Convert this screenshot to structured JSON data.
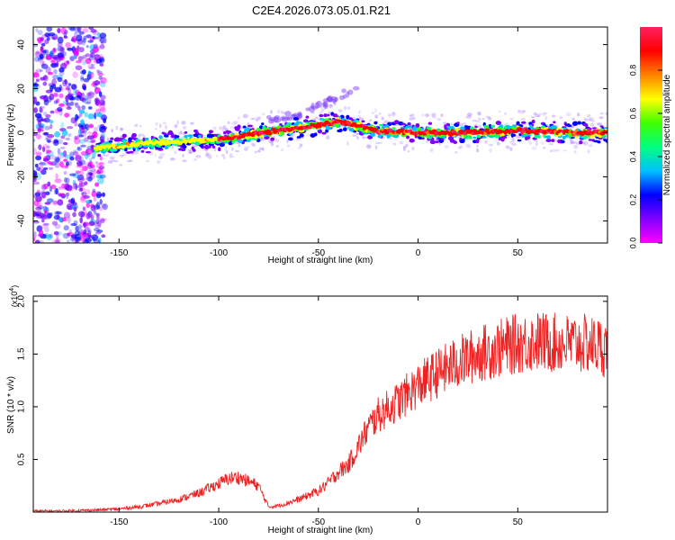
{
  "figure": {
    "title": "C2E4.2026.073.05.01.R21"
  },
  "chart_data": [
    {
      "type": "heatmap",
      "title": "C2E4.2026.073.05.01.R21",
      "xlabel": "Height of straight line (km)",
      "ylabel": "Frequency (Hz)",
      "xlim": [
        -193,
        95
      ],
      "ylim": [
        -50,
        48
      ],
      "xticks": [
        -150,
        -100,
        -50,
        0,
        50
      ],
      "yticks": [
        -40,
        -20,
        0,
        20,
        40
      ],
      "colorbar": {
        "label": "Normalized spectral amplitude",
        "range": [
          0.0,
          1.0
        ],
        "ticks": [
          "0.0",
          "0.2",
          "0.4",
          "0.6",
          "0.8"
        ],
        "tick_values": [
          0.0,
          0.2,
          0.4,
          0.6,
          0.8
        ],
        "colors": [
          "#ff00ff",
          "#8000ff",
          "#0000ff",
          "#00c0ff",
          "#00ff80",
          "#40ff00",
          "#ffff00",
          "#ff8000",
          "#ff0000",
          "#ff2060"
        ]
      },
      "ridge": {
        "description_points_x": [
          -160,
          -140,
          -120,
          -100,
          -80,
          -60,
          -40,
          -30,
          -20,
          0,
          20,
          50,
          80,
          95
        ],
        "description_points_y": [
          -7,
          -5,
          -4,
          -3,
          0,
          2,
          5,
          3,
          1,
          0,
          0,
          1,
          0,
          0
        ],
        "secondary_branch_x": [
          -75,
          -60,
          -50,
          -40,
          -30
        ],
        "secondary_branch_y": [
          6,
          8,
          12,
          16,
          22
        ]
      }
    },
    {
      "type": "line",
      "xlabel": "Height of straight line (km)",
      "ylabel": "SNR (10 * v/v)",
      "yscale_label": "(x10",
      "yscale_exponent": "4",
      "xlim": [
        -193,
        95
      ],
      "ylim": [
        0.0,
        2.05
      ],
      "xticks": [
        -150,
        -100,
        -50,
        0,
        50
      ],
      "yticks": [
        0.5,
        1.0,
        1.5,
        2.0
      ],
      "ytick_labels": [
        "0.5",
        "1.0",
        "1.5",
        "2.0"
      ],
      "line_color": "#ee2222",
      "series": [
        {
          "name": "SNR",
          "x": [
            -193,
            -180,
            -160,
            -150,
            -140,
            -130,
            -120,
            -110,
            -100,
            -95,
            -90,
            -85,
            -80,
            -75,
            -70,
            -60,
            -50,
            -45,
            -40,
            -35,
            -30,
            -25,
            -20,
            -10,
            0,
            10,
            20,
            30,
            40,
            50,
            60,
            70,
            80,
            90,
            95
          ],
          "y": [
            0.01,
            0.01,
            0.02,
            0.03,
            0.05,
            0.08,
            0.12,
            0.18,
            0.27,
            0.32,
            0.33,
            0.29,
            0.25,
            0.05,
            0.06,
            0.12,
            0.2,
            0.28,
            0.38,
            0.45,
            0.62,
            0.8,
            0.92,
            1.05,
            1.2,
            1.32,
            1.42,
            1.5,
            1.55,
            1.6,
            1.62,
            1.6,
            1.6,
            1.58,
            1.55
          ]
        }
      ]
    }
  ]
}
